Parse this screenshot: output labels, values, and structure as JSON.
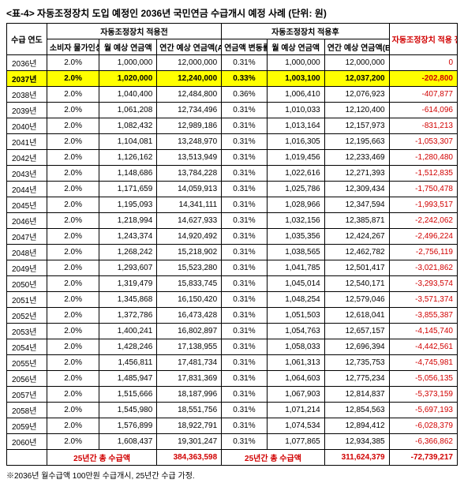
{
  "title": "<표-4> 자동조정장치 도입 예정인 2036년 국민연금 수급개시 예정 사례 (단위: 원)",
  "footnote": "※2036년 월수급액 100만원 수급개시, 25년간 수급 가정.",
  "headers": {
    "group_before": "자동조정장치 적용전",
    "group_after": "자동조정장치 적용후",
    "year": "수급\n연도",
    "inflation": "소비자\n물가인상율",
    "monthly_before": "월 예상\n연금액",
    "annual_before": "연간 예상\n연금액(A)",
    "change_rate": "연금액\n변동률",
    "monthly_after": "월 예상\n연금액",
    "annual_after": "연간 예상\n연금액(B)",
    "diff": "자동조정장치\n적용 전후\n연금액 차이\n(B-A)"
  },
  "highlight_year": "2037년",
  "rows": [
    {
      "year": "2036년",
      "inf": "2.0%",
      "mb": "1,000,000",
      "ab": "12,000,000",
      "cr": "0.31%",
      "ma": "1,000,000",
      "aa": "12,000,000",
      "d": "0"
    },
    {
      "year": "2037년",
      "inf": "2.0%",
      "mb": "1,020,000",
      "ab": "12,240,000",
      "cr": "0.33%",
      "ma": "1,003,100",
      "aa": "12,037,200",
      "d": "-202,800"
    },
    {
      "year": "2038년",
      "inf": "2.0%",
      "mb": "1,040,400",
      "ab": "12,484,800",
      "cr": "0.36%",
      "ma": "1,006,410",
      "aa": "12,076,923",
      "d": "-407,877"
    },
    {
      "year": "2039년",
      "inf": "2.0%",
      "mb": "1,061,208",
      "ab": "12,734,496",
      "cr": "0.31%",
      "ma": "1,010,033",
      "aa": "12,120,400",
      "d": "-614,096"
    },
    {
      "year": "2040년",
      "inf": "2.0%",
      "mb": "1,082,432",
      "ab": "12,989,186",
      "cr": "0.31%",
      "ma": "1,013,164",
      "aa": "12,157,973",
      "d": "-831,213"
    },
    {
      "year": "2041년",
      "inf": "2.0%",
      "mb": "1,104,081",
      "ab": "13,248,970",
      "cr": "0.31%",
      "ma": "1,016,305",
      "aa": "12,195,663",
      "d": "-1,053,307"
    },
    {
      "year": "2042년",
      "inf": "2.0%",
      "mb": "1,126,162",
      "ab": "13,513,949",
      "cr": "0.31%",
      "ma": "1,019,456",
      "aa": "12,233,469",
      "d": "-1,280,480"
    },
    {
      "year": "2043년",
      "inf": "2.0%",
      "mb": "1,148,686",
      "ab": "13,784,228",
      "cr": "0.31%",
      "ma": "1,022,616",
      "aa": "12,271,393",
      "d": "-1,512,835"
    },
    {
      "year": "2044년",
      "inf": "2.0%",
      "mb": "1,171,659",
      "ab": "14,059,913",
      "cr": "0.31%",
      "ma": "1,025,786",
      "aa": "12,309,434",
      "d": "-1,750,478"
    },
    {
      "year": "2045년",
      "inf": "2.0%",
      "mb": "1,195,093",
      "ab": "14,341,111",
      "cr": "0.31%",
      "ma": "1,028,966",
      "aa": "12,347,594",
      "d": "-1,993,517"
    },
    {
      "year": "2046년",
      "inf": "2.0%",
      "mb": "1,218,994",
      "ab": "14,627,933",
      "cr": "0.31%",
      "ma": "1,032,156",
      "aa": "12,385,871",
      "d": "-2,242,062"
    },
    {
      "year": "2047년",
      "inf": "2.0%",
      "mb": "1,243,374",
      "ab": "14,920,492",
      "cr": "0.31%",
      "ma": "1,035,356",
      "aa": "12,424,267",
      "d": "-2,496,224"
    },
    {
      "year": "2048년",
      "inf": "2.0%",
      "mb": "1,268,242",
      "ab": "15,218,902",
      "cr": "0.31%",
      "ma": "1,038,565",
      "aa": "12,462,782",
      "d": "-2,756,119"
    },
    {
      "year": "2049년",
      "inf": "2.0%",
      "mb": "1,293,607",
      "ab": "15,523,280",
      "cr": "0.31%",
      "ma": "1,041,785",
      "aa": "12,501,417",
      "d": "-3,021,862"
    },
    {
      "year": "2050년",
      "inf": "2.0%",
      "mb": "1,319,479",
      "ab": "15,833,745",
      "cr": "0.31%",
      "ma": "1,045,014",
      "aa": "12,540,171",
      "d": "-3,293,574"
    },
    {
      "year": "2051년",
      "inf": "2.0%",
      "mb": "1,345,868",
      "ab": "16,150,420",
      "cr": "0.31%",
      "ma": "1,048,254",
      "aa": "12,579,046",
      "d": "-3,571,374"
    },
    {
      "year": "2052년",
      "inf": "2.0%",
      "mb": "1,372,786",
      "ab": "16,473,428",
      "cr": "0.31%",
      "ma": "1,051,503",
      "aa": "12,618,041",
      "d": "-3,855,387"
    },
    {
      "year": "2053년",
      "inf": "2.0%",
      "mb": "1,400,241",
      "ab": "16,802,897",
      "cr": "0.31%",
      "ma": "1,054,763",
      "aa": "12,657,157",
      "d": "-4,145,740"
    },
    {
      "year": "2054년",
      "inf": "2.0%",
      "mb": "1,428,246",
      "ab": "17,138,955",
      "cr": "0.31%",
      "ma": "1,058,033",
      "aa": "12,696,394",
      "d": "-4,442,561"
    },
    {
      "year": "2055년",
      "inf": "2.0%",
      "mb": "1,456,811",
      "ab": "17,481,734",
      "cr": "0.31%",
      "ma": "1,061,313",
      "aa": "12,735,753",
      "d": "-4,745,981"
    },
    {
      "year": "2056년",
      "inf": "2.0%",
      "mb": "1,485,947",
      "ab": "17,831,369",
      "cr": "0.31%",
      "ma": "1,064,603",
      "aa": "12,775,234",
      "d": "-5,056,135"
    },
    {
      "year": "2057년",
      "inf": "2.0%",
      "mb": "1,515,666",
      "ab": "18,187,996",
      "cr": "0.31%",
      "ma": "1,067,903",
      "aa": "12,814,837",
      "d": "-5,373,159"
    },
    {
      "year": "2058년",
      "inf": "2.0%",
      "mb": "1,545,980",
      "ab": "18,551,756",
      "cr": "0.31%",
      "ma": "1,071,214",
      "aa": "12,854,563",
      "d": "-5,697,193"
    },
    {
      "year": "2059년",
      "inf": "2.0%",
      "mb": "1,576,899",
      "ab": "18,922,791",
      "cr": "0.31%",
      "ma": "1,074,534",
      "aa": "12,894,412",
      "d": "-6,028,379"
    },
    {
      "year": "2060년",
      "inf": "2.0%",
      "mb": "1,608,437",
      "ab": "19,301,247",
      "cr": "0.31%",
      "ma": "1,077,865",
      "aa": "12,934,385",
      "d": "-6,366,862"
    }
  ],
  "sum": {
    "label_before": "25년간 총 수급액",
    "total_before": "384,363,598",
    "label_after": "25년간 총 수급액",
    "total_after": "311,624,379",
    "diff": "-72,739,217"
  }
}
